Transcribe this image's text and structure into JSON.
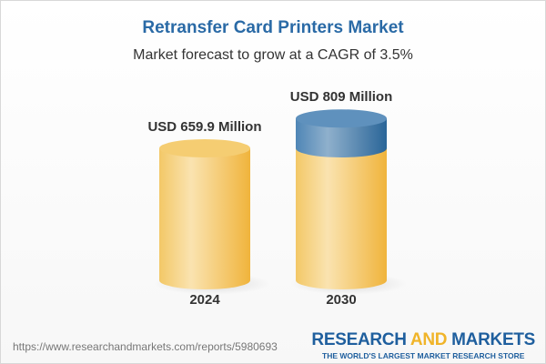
{
  "header": {
    "title": "Retransfer Card Printers Market",
    "subtitle": "Market forecast to grow at a CAGR of 3.5%"
  },
  "chart_data": {
    "type": "bar",
    "style": "3d-cylinder",
    "categories": [
      "2024",
      "2030"
    ],
    "values": [
      659.9,
      809
    ],
    "data_labels": [
      "USD 659.9 Million",
      "USD 809 Million"
    ],
    "unit": "USD Million",
    "colors": {
      "base": "#f2c45a",
      "growth": "#4a86b8"
    }
  },
  "footer": {
    "url": "https://www.researchandmarkets.com/reports/5980693",
    "logo": {
      "part1": "RESEARCH ",
      "part2": "AND",
      "part3": " MARKETS",
      "tagline": "THE WORLD'S LARGEST MARKET RESEARCH STORE"
    }
  }
}
